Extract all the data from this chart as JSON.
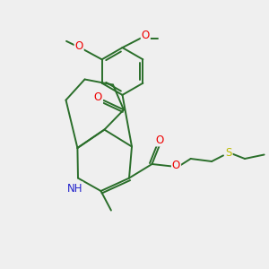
{
  "bg_color": "#efefef",
  "bond_color": "#2a6e2a",
  "bond_width": 1.4,
  "O_color": "#ee0000",
  "N_color": "#2222cc",
  "S_color": "#bbbb00",
  "font_size_atom": 8.5,
  "fig_size": [
    3.0,
    3.0
  ],
  "dpi": 100,
  "xlim": [
    0,
    10
  ],
  "ylim": [
    0,
    10
  ]
}
